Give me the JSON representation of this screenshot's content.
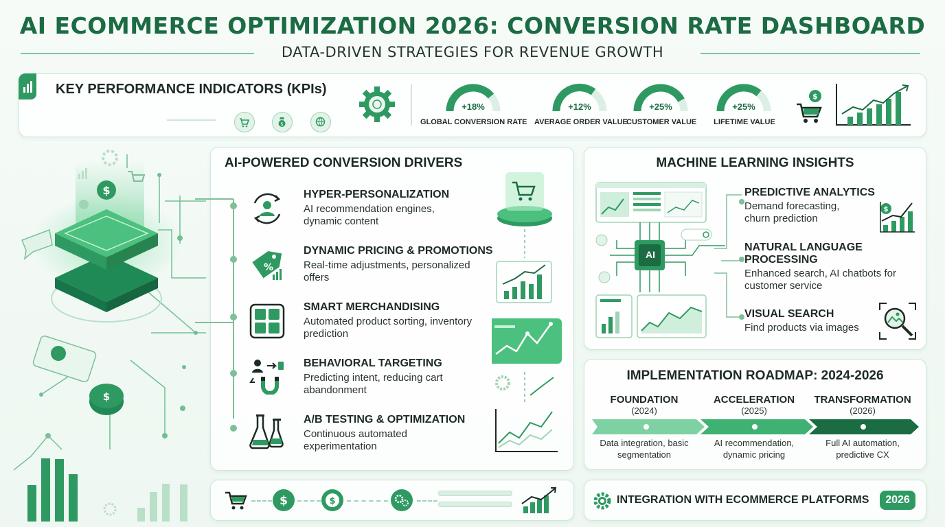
{
  "header": {
    "title": "AI ECOMMERCE OPTIMIZATION 2026: CONVERSION RATE DASHBOARD",
    "subtitle": "DATA-DRIVEN STRATEGIES FOR REVENUE GROWTH"
  },
  "kpis": {
    "title": "KEY PERFORMANCE INDICATORS (KPIs)",
    "items": [
      {
        "value": "+18%",
        "label": "GLOBAL CONVERSION RATE"
      },
      {
        "value": "+12%",
        "label": "AVERAGE ORDER VALUE"
      },
      {
        "value": "+25%",
        "label": "CUSTOMER VALUE"
      },
      {
        "value": "+25%",
        "label": "LIFETIME VALUE"
      }
    ],
    "icons": [
      "bar-chart-icon",
      "gear-icon",
      "cart-icon",
      "money-bag-icon",
      "globe-icon",
      "dollar-icon",
      "growth-chart-icon"
    ]
  },
  "drivers": {
    "title": "AI-POWERED CONVERSION DRIVERS",
    "items": [
      {
        "title": "HYPER-PERSONALIZATION",
        "desc": "AI recommendation engines, dynamic content",
        "icon": "user-cycle-icon"
      },
      {
        "title": "DYNAMIC PRICING & PROMOTIONS",
        "desc": "Real-time adjustments, personalized offers",
        "icon": "price-tag-icon"
      },
      {
        "title": "SMART MERCHANDISING",
        "desc": "Automated product sorting, inventory prediction",
        "icon": "product-grid-icon"
      },
      {
        "title": "BEHAVIORAL TARGETING",
        "desc": "Predicting intent, reducing cart abandonment",
        "icon": "magnet-icon"
      },
      {
        "title": "A/B TESTING & OPTIMIZATION",
        "desc": "Continuous automated experimentation",
        "icon": "flask-icon"
      }
    ]
  },
  "ml": {
    "title": "MACHINE LEARNING INSIGHTS",
    "chip_label": "AI",
    "items": [
      {
        "title": "PREDICTIVE ANALYTICS",
        "desc": "Demand forecasting, churn prediction"
      },
      {
        "title": "NATURAL LANGUAGE PROCESSING",
        "desc": "Enhanced search, AI chatbots for customer service"
      },
      {
        "title": "VISUAL SEARCH",
        "desc": "Find products via images"
      }
    ]
  },
  "roadmap": {
    "title": "IMPLEMENTATION ROADMAP: 2024-2026",
    "phases": [
      {
        "name": "FOUNDATION",
        "year": "(2024)",
        "desc": "Data integration, basic segmentation"
      },
      {
        "name": "ACCELERATION",
        "year": "(2025)",
        "desc": "AI recommendation, dynamic pricing"
      },
      {
        "name": "TRANSFORMATION",
        "year": "(2026)",
        "desc": "Full AI automation, predictive CX"
      }
    ]
  },
  "integration": {
    "label": "INTEGRATION WITH ECOMMERCE PLATFORMS",
    "year": "2026"
  },
  "colors": {
    "primary": "#2e9a61",
    "dark_green": "#1b6b43",
    "light_green": "#cfe6d8",
    "background": "#f6fbf8"
  }
}
